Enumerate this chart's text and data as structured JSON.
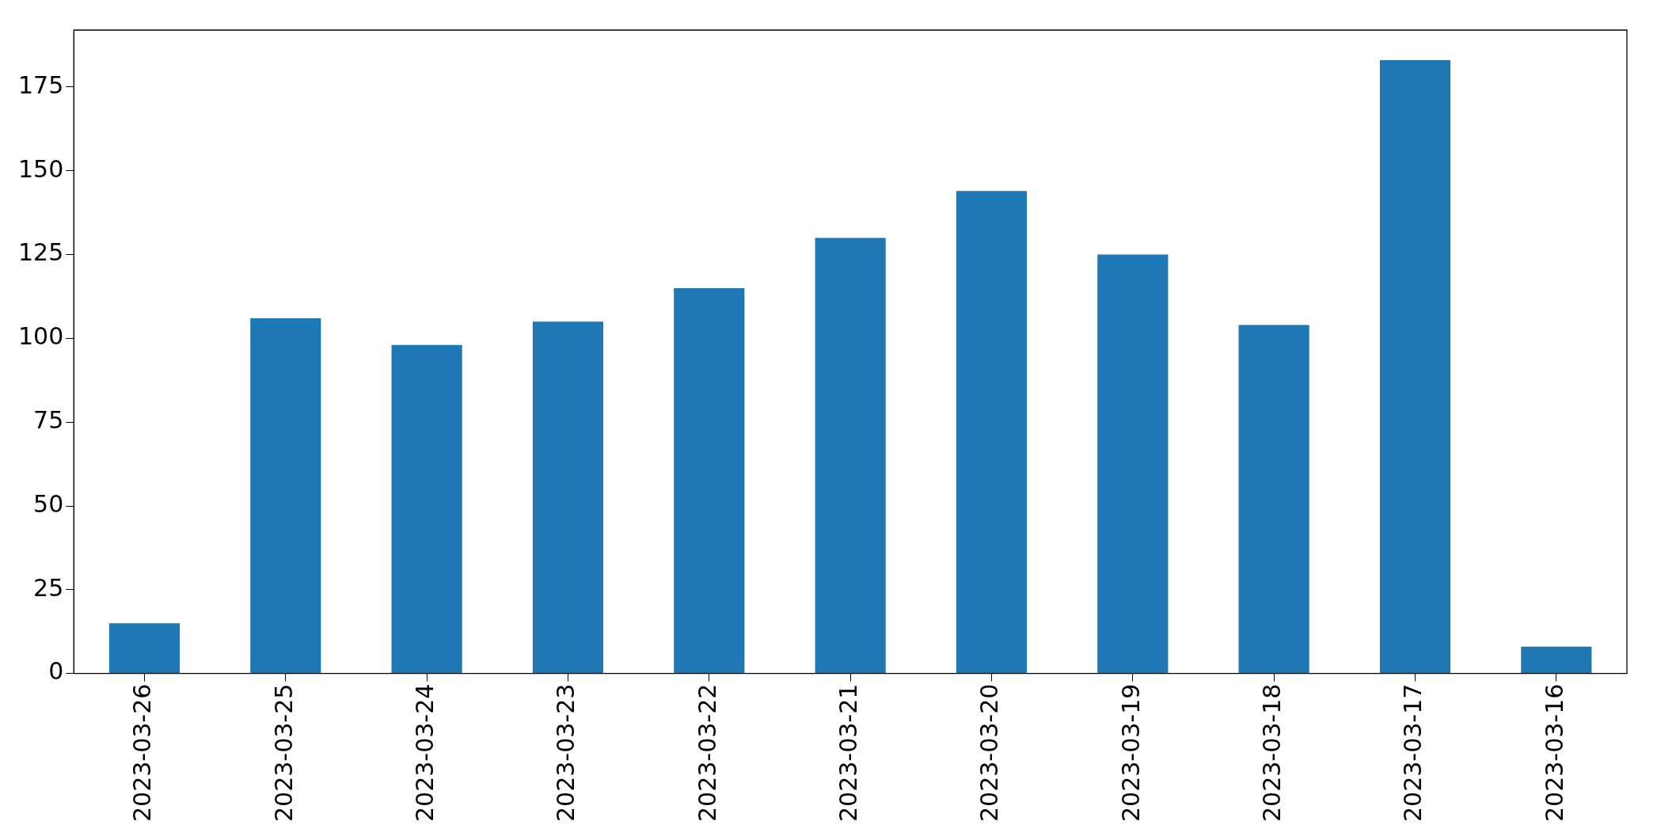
{
  "chart_data": {
    "type": "bar",
    "categories": [
      "2023-03-26",
      "2023-03-25",
      "2023-03-24",
      "2023-03-23",
      "2023-03-22",
      "2023-03-21",
      "2023-03-20",
      "2023-03-19",
      "2023-03-18",
      "2023-03-17",
      "2023-03-16"
    ],
    "values": [
      15,
      106,
      98,
      105,
      115,
      130,
      144,
      125,
      104,
      183,
      8
    ],
    "color": "#1f77b4",
    "ylim": [
      0,
      192
    ],
    "yticks": [
      0,
      25,
      50,
      75,
      100,
      125,
      150,
      175
    ],
    "grid": false,
    "legend": false
  }
}
